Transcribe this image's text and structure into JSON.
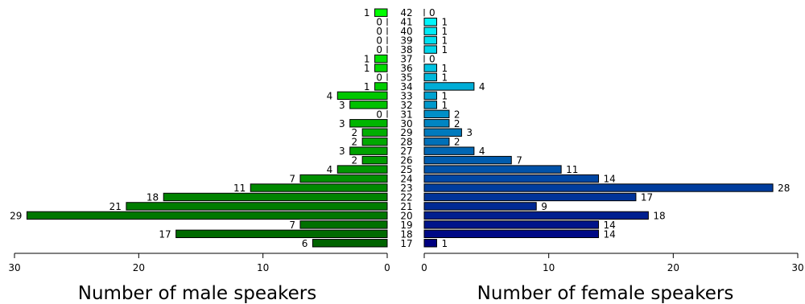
{
  "chart_data": {
    "type": "bar",
    "orientation": "horizontal",
    "layout": "population-pyramid",
    "categories": [
      "17",
      "18",
      "19",
      "20",
      "21",
      "22",
      "23",
      "24",
      "25",
      "26",
      "27",
      "28",
      "29",
      "30",
      "31",
      "32",
      "33",
      "34",
      "35",
      "36",
      "37",
      "38",
      "39",
      "40",
      "41",
      "42"
    ],
    "series": [
      {
        "values": [
          6,
          17,
          7,
          29,
          21,
          18,
          11,
          7,
          4,
          2,
          3,
          2,
          2,
          3,
          0,
          3,
          4,
          1,
          0,
          1,
          1,
          0,
          0,
          0,
          0,
          1
        ],
        "color_dark": "#006400",
        "color_light": "#00ff00",
        "xlim": [
          30,
          0
        ],
        "ticks": [
          30,
          20,
          10,
          0
        ],
        "xlabel": "Number of male speakers"
      },
      {
        "values": [
          1,
          14,
          14,
          18,
          9,
          17,
          28,
          14,
          11,
          7,
          4,
          2,
          3,
          2,
          2,
          1,
          1,
          4,
          1,
          1,
          0,
          1,
          1,
          1,
          1,
          0
        ],
        "color_dark": "#000080",
        "color_light": "#00ffff",
        "xlim": [
          0,
          30
        ],
        "ticks": [
          0,
          10,
          20,
          30
        ],
        "xlabel": "Number of female speakers"
      }
    ],
    "grid": false,
    "legend": "none"
  }
}
